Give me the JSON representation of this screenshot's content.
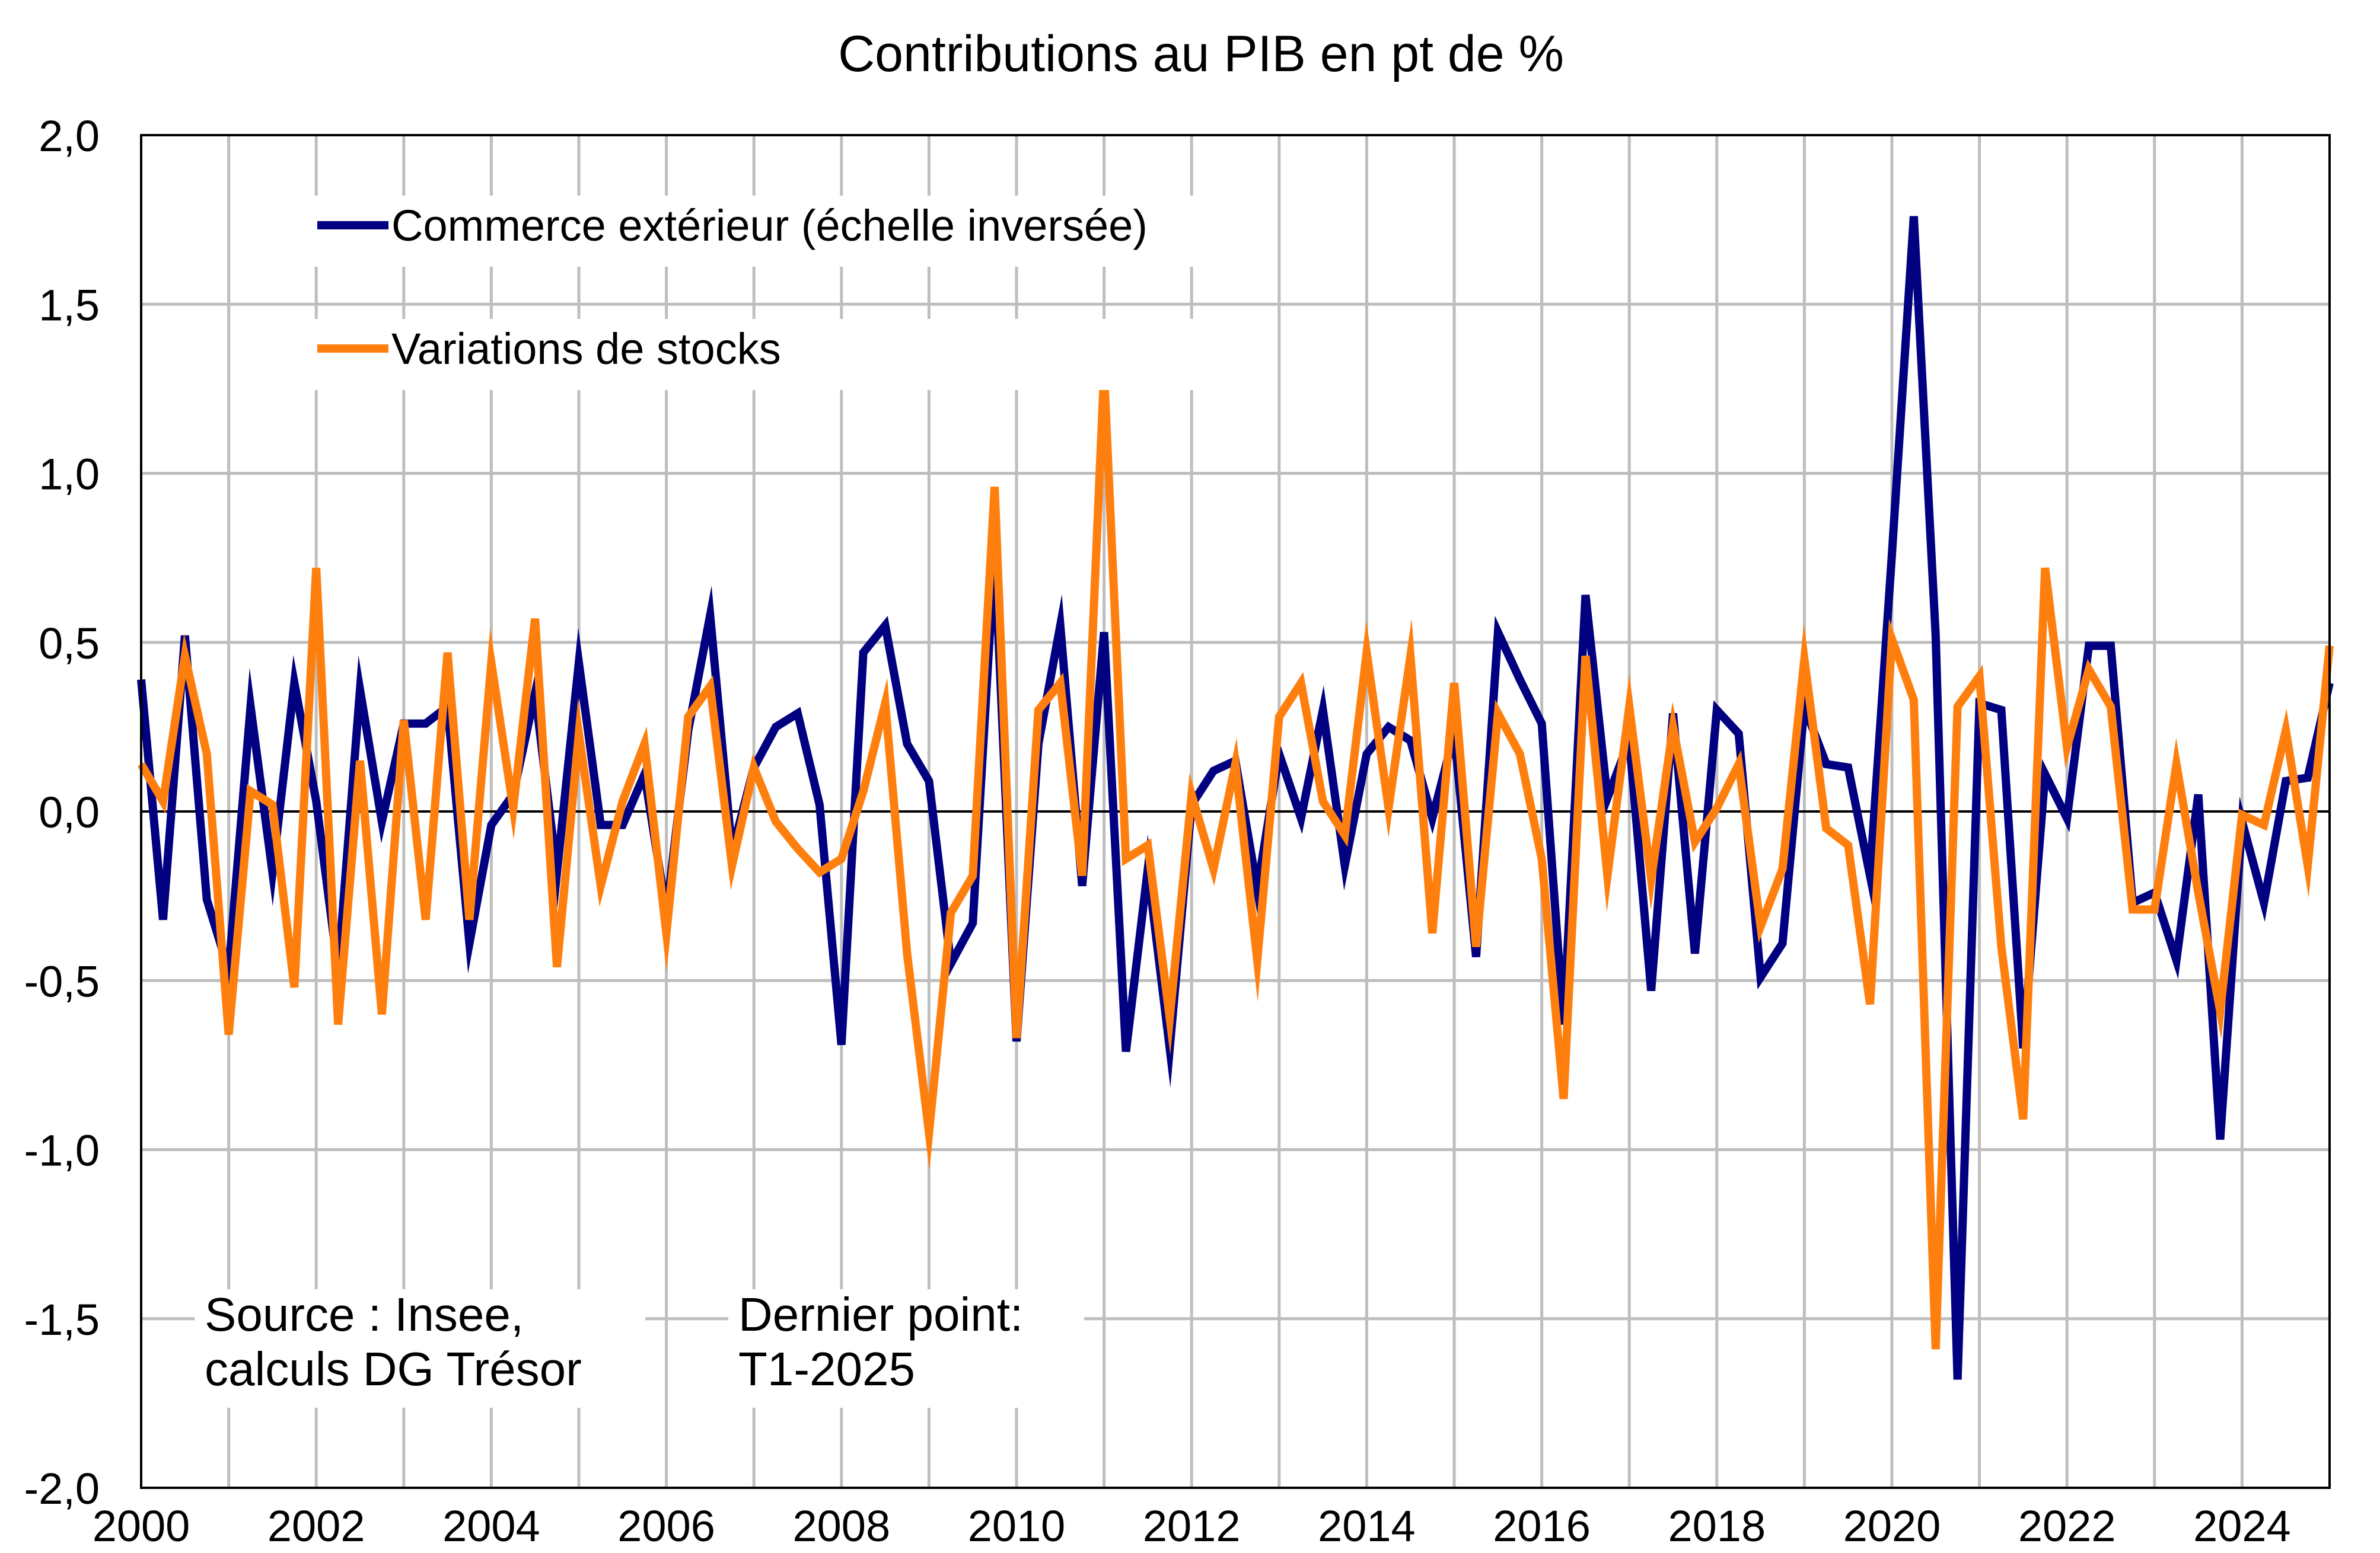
{
  "chart_data": {
    "type": "line",
    "title": "Contributions au PIB en pt de %",
    "xlabel": "",
    "ylabel": "",
    "x_start": "2000-T1",
    "x_end": "2025-T1",
    "xlim": [
      2000,
      2025
    ],
    "ylim": [
      -2.0,
      2.0
    ],
    "y_ticks": [
      "2,0",
      "1,5",
      "1,0",
      "0,5",
      "0,0",
      "-0,5",
      "-1,0",
      "-1,5",
      "-2,0"
    ],
    "x_ticks": [
      "2000",
      "2002",
      "2004",
      "2006",
      "2008",
      "2010",
      "2012",
      "2014",
      "2016",
      "2018",
      "2020",
      "2022",
      "2024"
    ],
    "grid": true,
    "legend_position": "top-left",
    "series": [
      {
        "name": "Commerce extérieur (échelle inversée)",
        "color": "#000080",
        "values": [
          0.39,
          -0.32,
          0.52,
          -0.26,
          -0.47,
          0.31,
          -0.18,
          0.38,
          0.03,
          -0.47,
          0.36,
          -0.03,
          0.26,
          0.26,
          0.31,
          -0.39,
          -0.04,
          0.05,
          0.35,
          -0.18,
          0.44,
          -0.04,
          -0.04,
          0.11,
          -0.3,
          0.24,
          0.58,
          -0.12,
          0.13,
          0.25,
          0.29,
          0.02,
          -0.69,
          0.47,
          0.55,
          0.2,
          0.09,
          -0.45,
          -0.33,
          0.77,
          -0.68,
          0.2,
          0.55,
          -0.22,
          0.53,
          -0.71,
          -0.17,
          -0.7,
          0.02,
          0.12,
          0.15,
          -0.23,
          0.17,
          -0.02,
          0.3,
          -0.16,
          0.17,
          0.25,
          0.21,
          -0.02,
          0.23,
          -0.43,
          0.53,
          0.39,
          0.26,
          -0.63,
          0.64,
          0.04,
          0.21,
          -0.53,
          0.29,
          -0.42,
          0.3,
          0.23,
          -0.49,
          -0.39,
          0.31,
          0.14,
          0.13,
          -0.19,
          0.76,
          1.76,
          0.52,
          -1.68,
          0.32,
          0.3,
          -0.7,
          0.11,
          -0.02,
          0.49,
          0.49,
          -0.27,
          -0.24,
          -0.44,
          0.05,
          -0.97,
          -0.03,
          -0.27,
          0.09,
          0.1,
          0.38
        ]
      },
      {
        "name": "Variations de stocks",
        "color": "#FF7F0E",
        "values": [
          0.14,
          0.03,
          0.46,
          0.17,
          -0.66,
          0.06,
          0.02,
          -0.52,
          0.72,
          -0.63,
          0.15,
          -0.6,
          0.27,
          -0.32,
          0.47,
          -0.32,
          0.44,
          0.01,
          0.57,
          -0.46,
          0.23,
          -0.22,
          0.03,
          0.2,
          -0.36,
          0.28,
          0.37,
          -0.16,
          0.13,
          -0.03,
          -0.11,
          -0.18,
          -0.14,
          0.06,
          0.32,
          -0.42,
          -0.95,
          -0.3,
          -0.19,
          0.96,
          -0.67,
          0.3,
          0.38,
          -0.19,
          1.3,
          -0.14,
          -0.1,
          -0.61,
          0.05,
          -0.17,
          0.14,
          -0.44,
          0.28,
          0.38,
          0.03,
          -0.07,
          0.47,
          0.01,
          0.46,
          -0.36,
          0.38,
          -0.4,
          0.29,
          0.17,
          -0.14,
          -0.85,
          0.46,
          -0.19,
          0.31,
          -0.2,
          0.25,
          -0.09,
          0.01,
          0.14,
          -0.34,
          -0.17,
          0.45,
          -0.05,
          -0.1,
          -0.57,
          0.51,
          0.33,
          -1.59,
          0.31,
          0.4,
          -0.4,
          -0.91,
          0.72,
          0.19,
          0.42,
          0.31,
          -0.29,
          -0.29,
          0.14,
          -0.24,
          -0.59,
          -0.01,
          -0.04,
          0.24,
          -0.16,
          0.49
        ]
      }
    ],
    "annotations": [
      {
        "lines": [
          "Source : Insee,",
          "calculs DG Trésor"
        ]
      },
      {
        "lines": [
          "Dernier point:",
          "T1-2025"
        ]
      }
    ]
  }
}
